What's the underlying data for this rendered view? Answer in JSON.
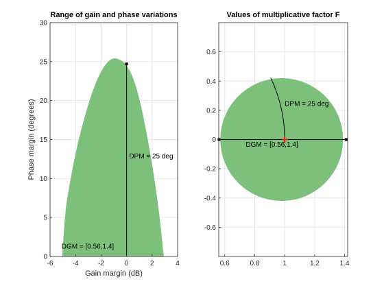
{
  "chart_data": [
    {
      "type": "area",
      "title": "Range of gain and phase variations",
      "xlabel": "Gain margin (dB)",
      "ylabel": "Phase margin (degrees)",
      "xlim": [
        -6,
        4
      ],
      "ylim": [
        0,
        30
      ],
      "xticks": [
        -6,
        -4,
        -2,
        0,
        2,
        4
      ],
      "yticks": [
        0,
        5,
        10,
        15,
        20,
        25,
        30
      ],
      "grid": true,
      "fill_color": "#7cc07c",
      "region_boundary": {
        "x": [
          -5.05,
          -4.8,
          -4.5,
          -4.0,
          -3.5,
          -3.0,
          -2.5,
          -2.0,
          -1.5,
          -1.0,
          -0.5,
          0.0,
          0.5,
          1.0,
          1.5,
          2.0,
          2.5,
          2.92
        ],
        "y": [
          0,
          5.5,
          8.9,
          13.2,
          16.6,
          19.5,
          21.9,
          23.7,
          24.9,
          25.4,
          25.2,
          24.5,
          22.9,
          20.2,
          16.4,
          11.8,
          6.2,
          0
        ]
      },
      "vertical_line": {
        "x": 0,
        "y": [
          0,
          24.7
        ]
      },
      "marker": {
        "x": 0,
        "y": 24.7
      },
      "annotations": [
        {
          "text": "DPM = 25 deg",
          "x": 0.2,
          "y": 12.6
        },
        {
          "text": "DGM = [0.56,1.4]",
          "x": -5.1,
          "y": 1.0
        }
      ]
    },
    {
      "type": "area",
      "title": "Values of multiplicative factor F",
      "xlabel": "",
      "ylabel": "",
      "xlim": [
        0.56,
        1.42
      ],
      "ylim": [
        -0.8,
        0.8
      ],
      "xticks": [
        0.6,
        0.8,
        1,
        1.2,
        1.4
      ],
      "yticks": [
        -0.6,
        -0.4,
        -0.2,
        0,
        0.2,
        0.4,
        0.6
      ],
      "grid": true,
      "fill_color": "#7cc07c",
      "disk": {
        "center": [
          0.98,
          0
        ],
        "radius": 0.42
      },
      "segment": {
        "x": [
          0.562,
          1.41
        ],
        "y": [
          0,
          0
        ]
      },
      "arc": {
        "radius": 1,
        "angle_deg": [
          0,
          25
        ]
      },
      "marker_center": {
        "x": 1,
        "y": 0,
        "color": "#ff0000"
      },
      "annotations": [
        {
          "text": "DPM = 25 deg",
          "x": 1.0,
          "y": 0.23
        },
        {
          "text": "DGM = [0.56,1.4]",
          "x": 0.74,
          "y": -0.05
        }
      ]
    }
  ]
}
